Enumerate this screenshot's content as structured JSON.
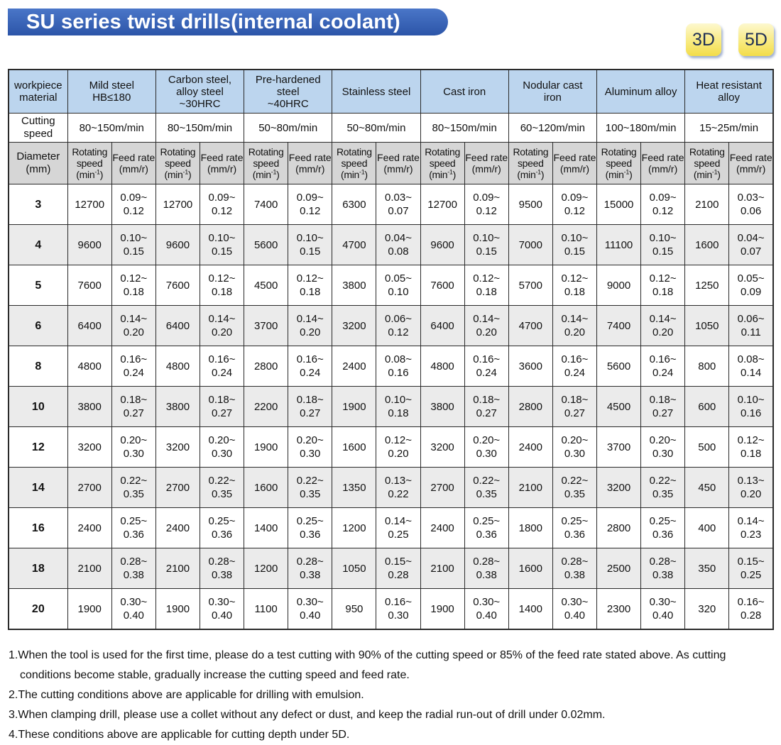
{
  "title": "SU series twist drills(internal coolant)",
  "badges": [
    "3D",
    "5D"
  ],
  "table": {
    "corner_label": [
      "workpiece",
      "material"
    ],
    "materials": [
      [
        "Mild steel",
        "HB≤180"
      ],
      [
        "Carbon steel,",
        "alloy steel",
        "~30HRC"
      ],
      [
        "Pre-hardened",
        "steel",
        "~40HRC"
      ],
      [
        "Stainless steel"
      ],
      [
        "Cast iron"
      ],
      [
        "Nodular cast",
        "iron"
      ],
      [
        "Aluminum alloy"
      ],
      [
        "Heat resistant",
        "alloy"
      ]
    ],
    "cutting_speed_label": [
      "Cutting",
      "speed"
    ],
    "cutting_speeds": [
      "80~150m/min",
      "80~150m/min",
      "50~80m/min",
      "50~80m/min",
      "80~150m/min",
      "60~120m/min",
      "100~180m/min",
      "15~25m/min"
    ],
    "diameter_label": [
      "Diameter",
      "(mm)"
    ],
    "rotating_label": [
      "Rotating",
      "speed",
      "(min",
      "-1",
      ")"
    ],
    "feed_label": [
      "Feed rate",
      "(mm/r)"
    ],
    "rows": [
      {
        "d": "3",
        "vals": [
          [
            "12700",
            "0.09~",
            "0.12"
          ],
          [
            "12700",
            "0.09~",
            "0.12"
          ],
          [
            "7400",
            "0.09~",
            "0.12"
          ],
          [
            "6300",
            "0.03~",
            "0.07"
          ],
          [
            "12700",
            "0.09~",
            "0.12"
          ],
          [
            "9500",
            "0.09~",
            "0.12"
          ],
          [
            "15000",
            "0.09~",
            "0.12"
          ],
          [
            "2100",
            "0.03~",
            "0.06"
          ]
        ]
      },
      {
        "d": "4",
        "vals": [
          [
            "9600",
            "0.10~",
            "0.15"
          ],
          [
            "9600",
            "0.10~",
            "0.15"
          ],
          [
            "5600",
            "0.10~",
            "0.15"
          ],
          [
            "4700",
            "0.04~",
            "0.08"
          ],
          [
            "9600",
            "0.10~",
            "0.15"
          ],
          [
            "7000",
            "0.10~",
            "0.15"
          ],
          [
            "11100",
            "0.10~",
            "0.15"
          ],
          [
            "1600",
            "0.04~",
            "0.07"
          ]
        ]
      },
      {
        "d": "5",
        "vals": [
          [
            "7600",
            "0.12~",
            "0.18"
          ],
          [
            "7600",
            "0.12~",
            "0.18"
          ],
          [
            "4500",
            "0.12~",
            "0.18"
          ],
          [
            "3800",
            "0.05~",
            "0.10"
          ],
          [
            "7600",
            "0.12~",
            "0.18"
          ],
          [
            "5700",
            "0.12~",
            "0.18"
          ],
          [
            "9000",
            "0.12~",
            "0.18"
          ],
          [
            "1250",
            "0.05~",
            "0.09"
          ]
        ]
      },
      {
        "d": "6",
        "vals": [
          [
            "6400",
            "0.14~",
            "0.20"
          ],
          [
            "6400",
            "0.14~",
            "0.20"
          ],
          [
            "3700",
            "0.14~",
            "0.20"
          ],
          [
            "3200",
            "0.06~",
            "0.12"
          ],
          [
            "6400",
            "0.14~",
            "0.20"
          ],
          [
            "4700",
            "0.14~",
            "0.20"
          ],
          [
            "7400",
            "0.14~",
            "0.20"
          ],
          [
            "1050",
            "0.06~",
            "0.11"
          ]
        ]
      },
      {
        "d": "8",
        "vals": [
          [
            "4800",
            "0.16~",
            "0.24"
          ],
          [
            "4800",
            "0.16~",
            "0.24"
          ],
          [
            "2800",
            "0.16~",
            "0.24"
          ],
          [
            "2400",
            "0.08~",
            "0.16"
          ],
          [
            "4800",
            "0.16~",
            "0.24"
          ],
          [
            "3600",
            "0.16~",
            "0.24"
          ],
          [
            "5600",
            "0.16~",
            "0.24"
          ],
          [
            "800",
            "0.08~",
            "0.14"
          ]
        ]
      },
      {
        "d": "10",
        "vals": [
          [
            "3800",
            "0.18~",
            "0.27"
          ],
          [
            "3800",
            "0.18~",
            "0.27"
          ],
          [
            "2200",
            "0.18~",
            "0.27"
          ],
          [
            "1900",
            "0.10~",
            "0.18"
          ],
          [
            "3800",
            "0.18~",
            "0.27"
          ],
          [
            "2800",
            "0.18~",
            "0.27"
          ],
          [
            "4500",
            "0.18~",
            "0.27"
          ],
          [
            "600",
            "0.10~",
            "0.16"
          ]
        ]
      },
      {
        "d": "12",
        "vals": [
          [
            "3200",
            "0.20~",
            "0.30"
          ],
          [
            "3200",
            "0.20~",
            "0.30"
          ],
          [
            "1900",
            "0.20~",
            "0.30"
          ],
          [
            "1600",
            "0.12~",
            "0.20"
          ],
          [
            "3200",
            "0.20~",
            "0.30"
          ],
          [
            "2400",
            "0.20~",
            "0.30"
          ],
          [
            "3700",
            "0.20~",
            "0.30"
          ],
          [
            "500",
            "0.12~",
            "0.18"
          ]
        ]
      },
      {
        "d": "14",
        "vals": [
          [
            "2700",
            "0.22~",
            "0.35"
          ],
          [
            "2700",
            "0.22~",
            "0.35"
          ],
          [
            "1600",
            "0.22~",
            "0.35"
          ],
          [
            "1350",
            "0.13~",
            "0.22"
          ],
          [
            "2700",
            "0.22~",
            "0.35"
          ],
          [
            "2100",
            "0.22~",
            "0.35"
          ],
          [
            "3200",
            "0.22~",
            "0.35"
          ],
          [
            "450",
            "0.13~",
            "0.20"
          ]
        ]
      },
      {
        "d": "16",
        "vals": [
          [
            "2400",
            "0.25~",
            "0.36"
          ],
          [
            "2400",
            "0.25~",
            "0.36"
          ],
          [
            "1400",
            "0.25~",
            "0.36"
          ],
          [
            "1200",
            "0.14~",
            "0.25"
          ],
          [
            "2400",
            "0.25~",
            "0.36"
          ],
          [
            "1800",
            "0.25~",
            "0.36"
          ],
          [
            "2800",
            "0.25~",
            "0.36"
          ],
          [
            "400",
            "0.14~",
            "0.23"
          ]
        ]
      },
      {
        "d": "18",
        "vals": [
          [
            "2100",
            "0.28~",
            "0.38"
          ],
          [
            "2100",
            "0.28~",
            "0.38"
          ],
          [
            "1200",
            "0.28~",
            "0.38"
          ],
          [
            "1050",
            "0.15~",
            "0.28"
          ],
          [
            "2100",
            "0.28~",
            "0.38"
          ],
          [
            "1600",
            "0.28~",
            "0.38"
          ],
          [
            "2500",
            "0.28~",
            "0.38"
          ],
          [
            "350",
            "0.15~",
            "0.25"
          ]
        ]
      },
      {
        "d": "20",
        "vals": [
          [
            "1900",
            "0.30~",
            "0.40"
          ],
          [
            "1900",
            "0.30~",
            "0.40"
          ],
          [
            "1100",
            "0.30~",
            "0.40"
          ],
          [
            "950",
            "0.16~",
            "0.30"
          ],
          [
            "1900",
            "0.30~",
            "0.40"
          ],
          [
            "1400",
            "0.30~",
            "0.40"
          ],
          [
            "2300",
            "0.30~",
            "0.40"
          ],
          [
            "320",
            "0.16~",
            "0.28"
          ]
        ]
      }
    ]
  },
  "notes": [
    "1.When the tool is used for the first time, please do a test cutting with 90% of the cutting speed or 85% of the feed rate stated above. As cutting conditions become stable, gradually increase the cutting speed and feed rate.",
    "2.The cutting conditions above are applicable for drilling with emulsion.",
    "3.When clamping drill, please use a collet without any defect or dust, and keep the radial run-out of drill under 0.02mm.",
    "4.These conditions above are applicable for cutting depth under 5D."
  ],
  "colors": {
    "title_bar": "#3a66bb",
    "material_header_bg": "#bcd5ee",
    "unit_header_bg": "#d6d6d6",
    "shaded_row_bg": "#ebebeb",
    "badge_bg": "#f8e97a"
  }
}
